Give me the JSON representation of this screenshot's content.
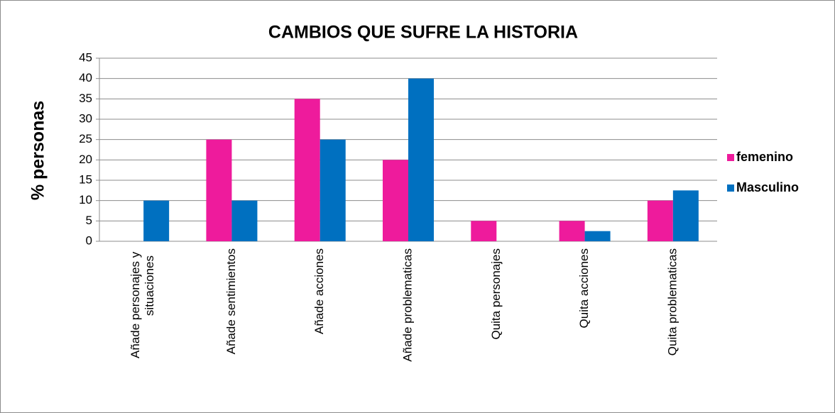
{
  "chart_data": {
    "type": "bar",
    "title": "CAMBIOS QUE SUFRE LA HISTORIA",
    "y_label": "% personas",
    "categories": [
      "Añade personajes y situaciones",
      "Añade sentimientos",
      "Añade acciones",
      "Añade problematicas",
      "Quita personajes",
      "Quita acciones",
      "Quita problematicas"
    ],
    "series": [
      {
        "name": "femenino",
        "color": "#ee1b9c",
        "values": [
          0,
          25,
          35,
          20,
          5,
          5,
          10
        ]
      },
      {
        "name": "Masculino",
        "color": "#0070c0",
        "values": [
          10,
          10,
          25,
          40,
          0,
          2.5,
          12.5
        ]
      }
    ],
    "ylim": [
      0,
      45
    ],
    "yticks": [
      0,
      5,
      10,
      15,
      20,
      25,
      30,
      35,
      40,
      45
    ],
    "grid": true,
    "legend": "right"
  }
}
